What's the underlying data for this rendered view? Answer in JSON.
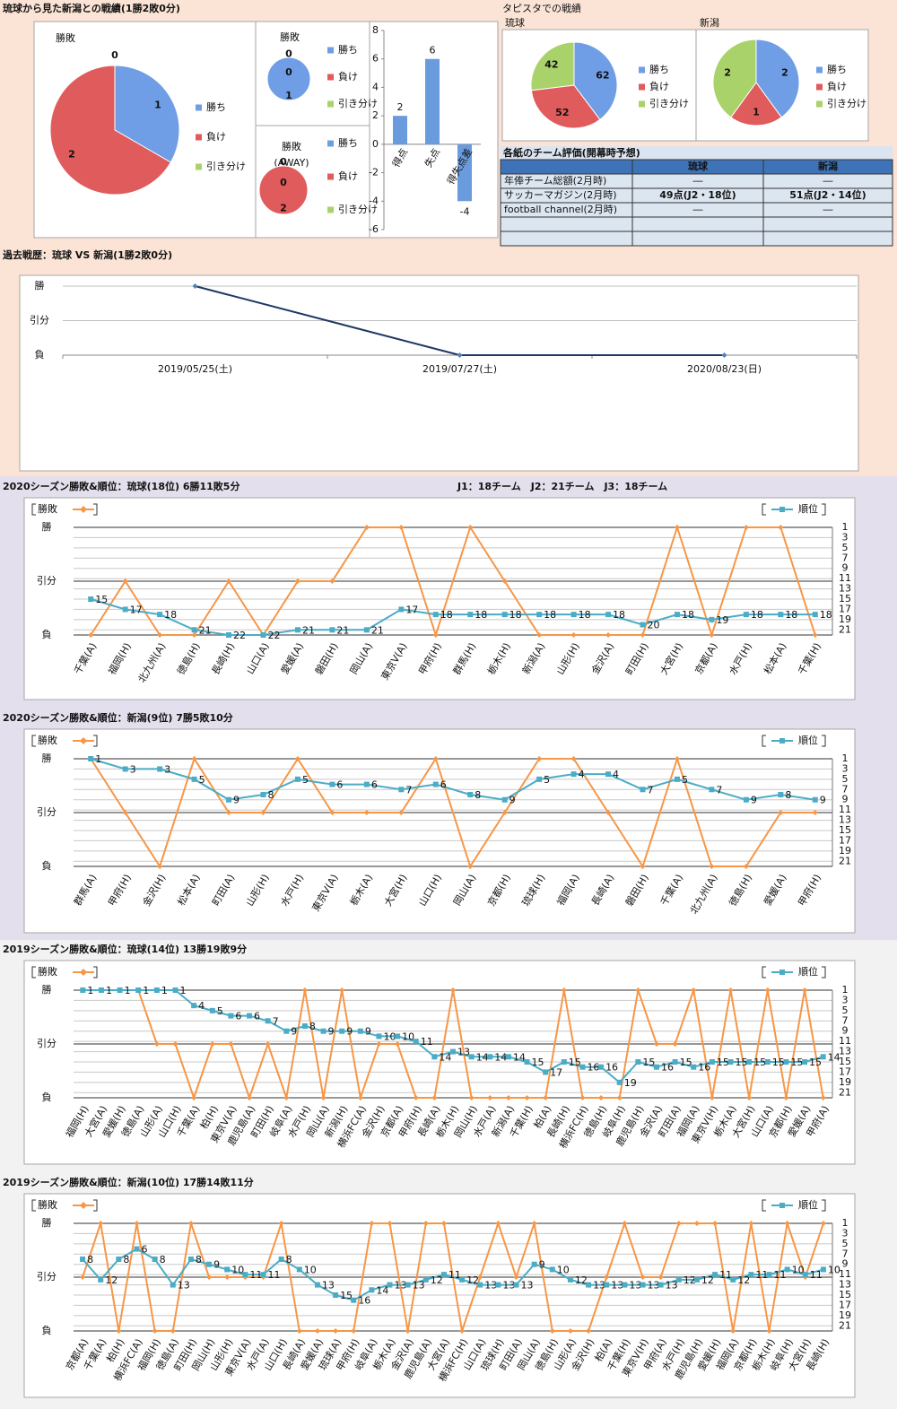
{
  "sections": {
    "record": "琉球から見た新潟との戦績(1勝2敗0分)",
    "tapista": "タピスタでの戦績"
  },
  "table": {
    "title": "各紙のチーム評価(開幕時予想)",
    "columns": [
      "琉球",
      "新潟"
    ],
    "rows": [
      [
        "年俸チーム総額(2月時)",
        "―",
        "―"
      ],
      [
        "サッカーマガジン(2月時)",
        "49点(J2・18位)",
        "51点(J2・14位)"
      ],
      [
        "football channel(2月時)",
        "―",
        "―"
      ]
    ]
  },
  "chart_data": [
    {
      "type": "pie",
      "title": "勝敗",
      "categories": [
        "勝ち",
        "負け",
        "引き分け"
      ],
      "values": [
        1,
        2,
        0
      ],
      "colors": [
        "#6f9ee6",
        "#e05b5b",
        "#a9d26a"
      ]
    },
    {
      "type": "pie",
      "title": "勝敗",
      "categories": [
        "勝ち",
        "負け",
        "引き分け"
      ],
      "values": [
        1,
        0,
        0
      ],
      "colors": [
        "#6f9ee6",
        "#e05b5b",
        "#a9d26a"
      ]
    },
    {
      "type": "pie",
      "title": "勝敗",
      "subtitle": "(AWAY)",
      "categories": [
        "勝ち",
        "負け",
        "引き分け"
      ],
      "values": [
        0,
        2,
        0
      ],
      "colors": [
        "#6f9ee6",
        "#e05b5b",
        "#a9d26a"
      ]
    },
    {
      "type": "bar",
      "categories": [
        "得点",
        "失点",
        "得失点差"
      ],
      "values": [
        2,
        6,
        -4
      ],
      "color": "#6a9bdc",
      "ylim": [
        -6,
        8
      ],
      "yticks": [
        -6,
        -4,
        -2,
        0,
        2,
        4,
        6,
        8
      ]
    },
    {
      "type": "pie",
      "title": "琉球",
      "categories": [
        "勝ち",
        "負け",
        "引き分け"
      ],
      "values": [
        62,
        52,
        42
      ],
      "colors": [
        "#6f9ee6",
        "#e05b5b",
        "#a9d26a"
      ]
    },
    {
      "type": "pie",
      "title": "新潟",
      "categories": [
        "勝ち",
        "負け",
        "引き分け"
      ],
      "values": [
        2,
        1,
        2
      ],
      "colors": [
        "#6f9ee6",
        "#e05b5b",
        "#a9d26a"
      ]
    },
    {
      "type": "line",
      "title": "過去戦歴：琉球 VS 新潟(1勝2敗0分)",
      "categories": [
        "2019/05/25(土)",
        "2019/07/27(土)",
        "2020/08/23(日)"
      ],
      "values": [
        1,
        -1,
        -1
      ],
      "color": "#1f3864",
      "ylim": [
        -1,
        1
      ],
      "yticks": [
        {
          "value": -1,
          "label": "負"
        },
        {
          "value": 0,
          "label": "引分"
        },
        {
          "value": 1,
          "label": "勝"
        }
      ],
      "grid": true
    },
    {
      "type": "line",
      "title": "2020シーズン勝敗&順位：琉球(18位) 6勝11敗5分",
      "annotation": "J1：18チーム　J2：21チーム　J3：18チーム",
      "categories": [
        "千葉(A)",
        "福岡(H)",
        "北九州(A)",
        "徳島(H)",
        "長崎(H)",
        "山口(A)",
        "愛媛(A)",
        "磐田(H)",
        "岡山(A)",
        "東京V(A)",
        "甲府(H)",
        "群馬(H)",
        "栃木(H)",
        "新潟(A)",
        "山形(H)",
        "金沢(A)",
        "町田(H)",
        "大宮(H)",
        "京都(A)",
        "水戸(H)",
        "松本(A)",
        "千葉(H)"
      ],
      "ylim": [
        -1,
        1
      ],
      "yticks": [
        {
          "value": -1,
          "label": "負"
        },
        {
          "value": 0,
          "label": "引分"
        },
        {
          "value": 1,
          "label": "勝"
        }
      ],
      "y2lim": [
        1,
        22
      ],
      "y2_inverted": true,
      "y2ticks": [
        1,
        3,
        5,
        7,
        9,
        11,
        13,
        15,
        17,
        19,
        21
      ],
      "series": [
        {
          "name": "勝敗",
          "color": "#f79646",
          "values": [
            -1,
            0,
            -1,
            -1,
            0,
            -1,
            0,
            0,
            1,
            1,
            -1,
            1,
            0,
            -1,
            -1,
            -1,
            -1,
            1,
            -1,
            1,
            1,
            -1
          ]
        },
        {
          "name": "順位",
          "color": "#4bacc6",
          "axis": "y2",
          "values": [
            15,
            17,
            18,
            21,
            22,
            22,
            21,
            21,
            21,
            17,
            18,
            18,
            18,
            18,
            18,
            18,
            20,
            18,
            19,
            18,
            18,
            18
          ]
        }
      ]
    },
    {
      "type": "line",
      "title": "2020シーズン勝敗&順位：新潟(9位) 7勝5敗10分",
      "categories": [
        "群馬(A)",
        "甲府(H)",
        "金沢(H)",
        "松本(A)",
        "町田(A)",
        "山形(H)",
        "水戸(H)",
        "東京V(A)",
        "栃木(A)",
        "大宮(H)",
        "山口(H)",
        "岡山(A)",
        "京都(H)",
        "琉球(H)",
        "福岡(A)",
        "長崎(A)",
        "磐田(H)",
        "千葉(A)",
        "北九州(A)",
        "徳島(H)",
        "愛媛(A)",
        "甲府(H)"
      ],
      "ylim": [
        -1,
        1
      ],
      "yticks": [
        {
          "value": -1,
          "label": "負"
        },
        {
          "value": 0,
          "label": "引分"
        },
        {
          "value": 1,
          "label": "勝"
        }
      ],
      "y2lim": [
        1,
        22
      ],
      "y2_inverted": true,
      "y2ticks": [
        1,
        3,
        5,
        7,
        9,
        11,
        13,
        15,
        17,
        19,
        21
      ],
      "series": [
        {
          "name": "勝敗",
          "color": "#f79646",
          "values": [
            1,
            0,
            -1,
            1,
            0,
            0,
            1,
            0,
            0,
            0,
            1,
            -1,
            0,
            1,
            1,
            0,
            -1,
            1,
            -1,
            -1,
            0,
            0
          ]
        },
        {
          "name": "順位",
          "color": "#4bacc6",
          "axis": "y2",
          "values": [
            1,
            3,
            3,
            5,
            9,
            8,
            5,
            6,
            6,
            7,
            6,
            8,
            9,
            5,
            4,
            4,
            7,
            5,
            7,
            9,
            8,
            9
          ]
        }
      ]
    },
    {
      "type": "line",
      "title": "2019シーズン勝敗&順位：琉球(14位) 13勝19敗9分",
      "categories": [
        "福岡(H)",
        "大宮(A)",
        "愛媛(H)",
        "徳島(A)",
        "山形(A)",
        "山口(H)",
        "千葉(A)",
        "柏(H)",
        "東京V(A)",
        "鹿児島(A)",
        "町田(H)",
        "岐阜(A)",
        "水戸(H)",
        "岡山(A)",
        "新潟(H)",
        "横浜FC(A)",
        "金沢(H)",
        "京都(A)",
        "甲府(H)",
        "長崎(A)",
        "栃木(H)",
        "岡山(H)",
        "水戸(A)",
        "新潟(A)",
        "千葉(H)",
        "柏(A)",
        "長崎(H)",
        "横浜FC(H)",
        "徳島(H)",
        "岐阜(H)",
        "鹿児島(H)",
        "金沢(A)",
        "町田(A)",
        "福岡(A)",
        "東京V(H)",
        "栃木(A)",
        "大宮(H)",
        "山口(A)",
        "京都(H)",
        "愛媛(A)",
        "甲府(A)"
      ],
      "ylim": [
        -1,
        1
      ],
      "yticks": [
        {
          "value": -1,
          "label": "負"
        },
        {
          "value": 0,
          "label": "引分"
        },
        {
          "value": 1,
          "label": "勝"
        }
      ],
      "y2lim": [
        1,
        22
      ],
      "y2_inverted": true,
      "y2ticks": [
        1,
        3,
        5,
        7,
        9,
        11,
        13,
        15,
        17,
        19,
        21
      ],
      "series": [
        {
          "name": "勝敗",
          "color": "#f79646",
          "values": [
            1,
            1,
            1,
            1,
            0,
            0,
            -1,
            0,
            0,
            -1,
            0,
            -1,
            1,
            -1,
            1,
            -1,
            0,
            0,
            -1,
            -1,
            1,
            -1,
            -1,
            -1,
            -1,
            -1,
            1,
            -1,
            -1,
            -1,
            1,
            0,
            0,
            1,
            -1,
            1,
            -1,
            1,
            -1,
            1,
            -1
          ]
        },
        {
          "name": "順位",
          "color": "#4bacc6",
          "axis": "y2",
          "values": [
            1,
            1,
            1,
            1,
            1,
            1,
            4,
            5,
            6,
            6,
            7,
            9,
            8,
            9,
            9,
            9,
            10,
            10,
            11,
            14,
            13,
            14,
            14,
            14,
            15,
            17,
            15,
            16,
            16,
            19,
            15,
            16,
            15,
            16,
            15,
            15,
            15,
            15,
            15,
            15,
            14
          ]
        }
      ]
    },
    {
      "type": "line",
      "title": "2019シーズン勝敗&順位：新潟(10位) 17勝14敗11分",
      "categories": [
        "京都(A)",
        "千葉(A)",
        "柏(H)",
        "横浜FC(A)",
        "福岡(H)",
        "徳島(A)",
        "町田(H)",
        "岡山(H)",
        "山形(H)",
        "東京V(A)",
        "水戸(A)",
        "山口(H)",
        "長崎(A)",
        "愛媛(A)",
        "琉球(A)",
        "甲府(H)",
        "岐阜(A)",
        "栃木(A)",
        "金沢(A)",
        "鹿児島(A)",
        "大宮(A)",
        "横浜FC(H)",
        "山口(A)",
        "琉球(H)",
        "町田(A)",
        "岡山(A)",
        "徳島(H)",
        "山形(A)",
        "金沢(H)",
        "柏(A)",
        "千葉(H)",
        "東京V(H)",
        "甲府(A)",
        "水戸(H)",
        "鹿児島(H)",
        "愛媛(H)",
        "福岡(A)",
        "京都(H)",
        "栃木(H)",
        "岐阜(H)",
        "大宮(H)",
        "長崎(H)"
      ],
      "ylim": [
        -1,
        1
      ],
      "yticks": [
        {
          "value": -1,
          "label": "負"
        },
        {
          "value": 0,
          "label": "引分"
        },
        {
          "value": 1,
          "label": "勝"
        }
      ],
      "y2lim": [
        1,
        22
      ],
      "y2_inverted": true,
      "y2ticks": [
        1,
        3,
        5,
        7,
        9,
        11,
        13,
        15,
        17,
        19,
        21
      ],
      "series": [
        {
          "name": "勝敗",
          "color": "#f79646",
          "values": [
            0,
            1,
            -1,
            1,
            -1,
            -1,
            1,
            0,
            0,
            0,
            0,
            1,
            -1,
            -1,
            -1,
            -1,
            1,
            1,
            -1,
            1,
            1,
            -1,
            0,
            1,
            0,
            1,
            -1,
            -1,
            -1,
            0,
            1,
            0,
            0,
            1,
            1,
            1,
            -1,
            1,
            -1,
            1,
            0,
            1
          ]
        },
        {
          "name": "順位",
          "color": "#4bacc6",
          "axis": "y2",
          "values": [
            8,
            12,
            8,
            6,
            8,
            13,
            8,
            9,
            10,
            11,
            11,
            8,
            10,
            13,
            15,
            16,
            14,
            13,
            13,
            12,
            11,
            12,
            13,
            13,
            13,
            9,
            10,
            12,
            13,
            13,
            13,
            13,
            13,
            12,
            12,
            11,
            12,
            11,
            11,
            10,
            11,
            10
          ]
        }
      ]
    }
  ]
}
